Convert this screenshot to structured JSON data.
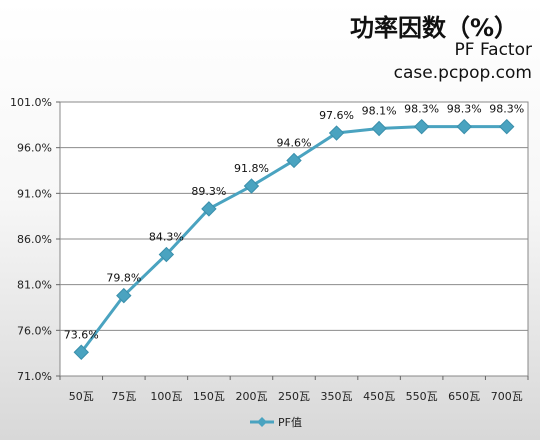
{
  "title": "功率因数（%）",
  "subtitle": "PF Factor",
  "site": "case.pcpop.com",
  "chart_data": {
    "type": "line",
    "categories": [
      "50瓦",
      "75瓦",
      "100瓦",
      "150瓦",
      "200瓦",
      "250瓦",
      "350瓦",
      "450瓦",
      "550瓦",
      "650瓦",
      "700瓦"
    ],
    "series": [
      {
        "name": "PF值",
        "values": [
          73.6,
          79.8,
          84.3,
          89.3,
          91.8,
          94.6,
          97.6,
          98.1,
          98.3,
          98.3,
          98.3
        ],
        "labels": [
          "73.6%",
          "79.8%",
          "84.3%",
          "89.3%",
          "91.8%",
          "94.6%",
          "97.6%",
          "98.1%",
          "98.3%",
          "98.3%",
          "98.3%"
        ],
        "color": "#4aa3c0"
      }
    ],
    "ylim": [
      71,
      101
    ],
    "yticks": [
      "71.0%",
      "76.0%",
      "81.0%",
      "86.0%",
      "91.0%",
      "96.0%",
      "101.0%"
    ],
    "grid": true,
    "legend": "bottom"
  }
}
